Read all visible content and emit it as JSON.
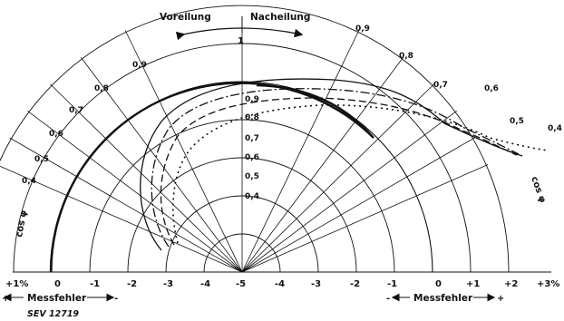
{
  "direction": {
    "left_label": "Voreilung",
    "right_label": "Nacheilung"
  },
  "pf_axis": {
    "left_title": "cos φ",
    "right_title": "cos φ",
    "center_top": "1",
    "rim_labels_left": [
      "0,4",
      "0,5",
      "0,6",
      "0,7",
      "0,8",
      "0,9"
    ],
    "rim_labels_right": [
      "0,9",
      "0,8",
      "0,7",
      "0,6",
      "0,5",
      "0,4"
    ],
    "inner_scale": [
      "0,9",
      "0,8",
      "0,7",
      "0,6",
      "0,5",
      "0,4"
    ]
  },
  "error_axis": {
    "left_ticks": [
      "+1%",
      "0",
      "-1",
      "-2",
      "-3",
      "-4"
    ],
    "center": "-5",
    "right_ticks": [
      "-4",
      "-3",
      "-2",
      "-1",
      "0",
      "+1",
      "+2",
      "+3%"
    ],
    "left_caption": "Messfehler",
    "right_caption": "Messfehler",
    "left_minus": "-",
    "left_plus": "+",
    "right_minus": "-",
    "right_plus": "+"
  },
  "figure_id": "SEV 12719",
  "curves": [
    {
      "style": "solid-heavy"
    },
    {
      "style": "solid"
    },
    {
      "style": "dash-dot"
    },
    {
      "style": "dashed"
    },
    {
      "style": "dotted"
    }
  ],
  "colors": {
    "ink": "#111111",
    "paper": "#ffffff"
  }
}
